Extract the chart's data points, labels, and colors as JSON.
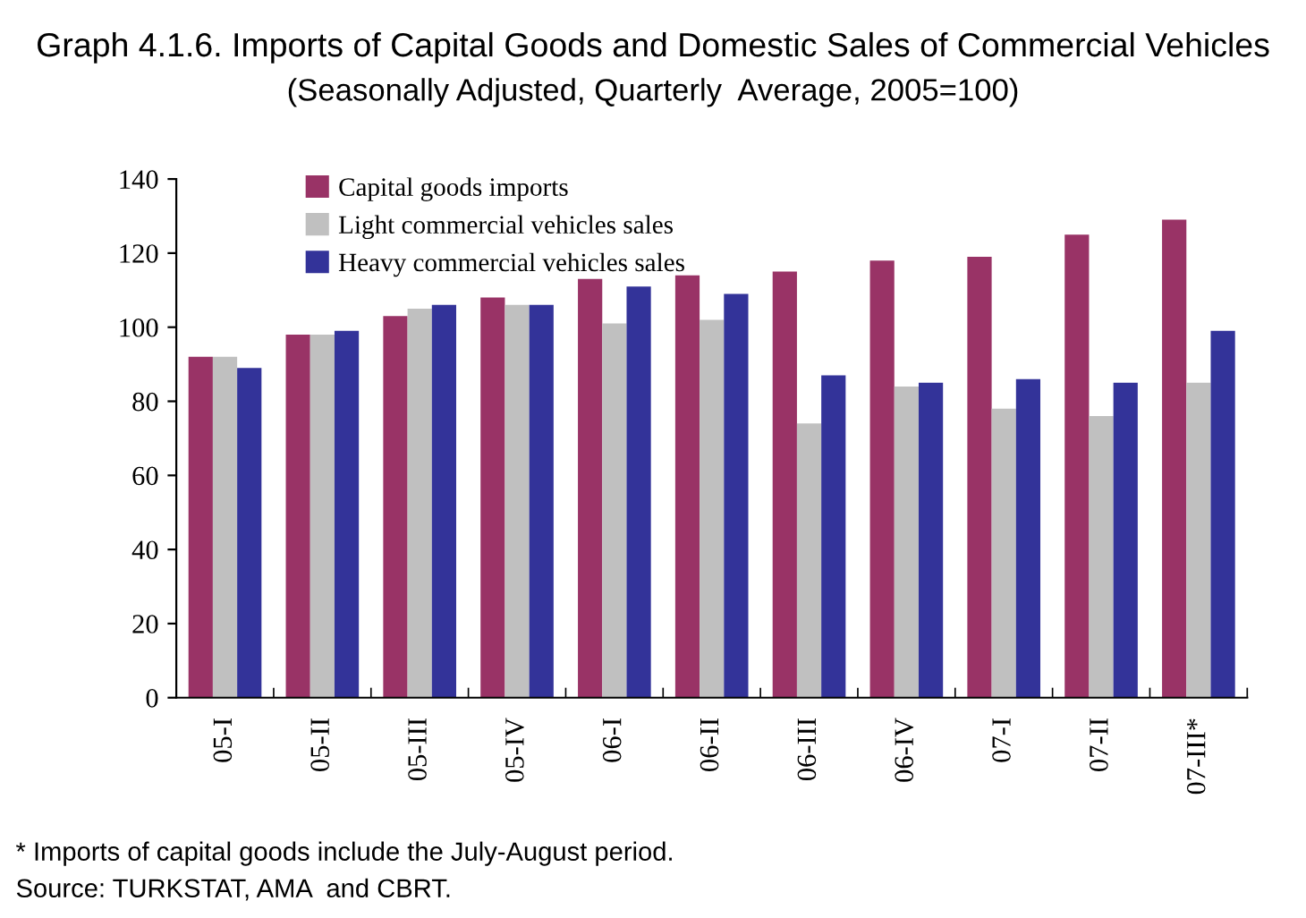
{
  "chart_data": {
    "type": "bar",
    "title": "Graph 4.1.6. Imports of Capital Goods and Domestic Sales of Commercial Vehicles",
    "subtitle": "(Seasonally Adjusted, Quarterly  Average, 2005=100)",
    "categories": [
      "05-I",
      "05-II",
      "05-III",
      "05-IV",
      "06-I",
      "06-II",
      "06-III",
      "06-IV",
      "07-I",
      "07-II",
      "07-III*"
    ],
    "series": [
      {
        "name": "Capital goods imports",
        "color": "#993366",
        "values": [
          92,
          98,
          103,
          108,
          113,
          114,
          115,
          118,
          119,
          125,
          129
        ]
      },
      {
        "name": "Light commercial vehicles sales",
        "color": "#c0c0c0",
        "values": [
          92,
          98,
          105,
          106,
          101,
          102,
          74,
          84,
          78,
          76,
          85
        ]
      },
      {
        "name": "Heavy commercial vehicles sales",
        "color": "#333399",
        "values": [
          89,
          99,
          106,
          106,
          111,
          109,
          87,
          85,
          86,
          85,
          99
        ]
      }
    ],
    "ylim": [
      0,
      140
    ],
    "yticks": [
      0,
      20,
      40,
      60,
      80,
      100,
      120,
      140
    ],
    "grid": false,
    "legend": "top left",
    "annotations": [
      "* Imports of capital goods include the July-August period.",
      "Source: TURKSTAT, AMA  and CBRT."
    ]
  }
}
